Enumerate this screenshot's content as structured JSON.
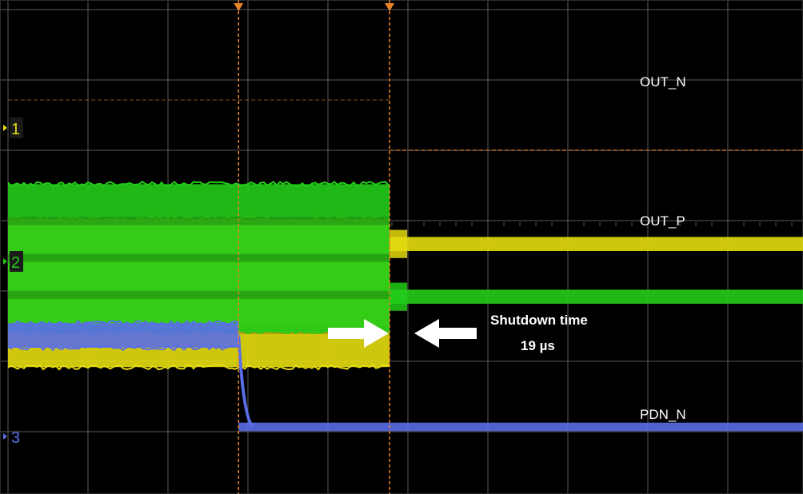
{
  "chart_data": {
    "type": "line",
    "description_type": "oscilloscope",
    "time_unit": "µs",
    "time_per_div": 10,
    "time_range_us": [
      -48,
      52
    ],
    "grid": true,
    "background": "#000000",
    "channels": [
      {
        "id": "1",
        "name": "OUT_N",
        "color": "#e6dc10",
        "marker": "1",
        "before_shutdown": {
          "level_div": 2.65,
          "envelope_div": 2.1
        },
        "after_shutdown": {
          "level_div": 3.35,
          "envelope_div": 0.2
        },
        "transition_us": 0
      },
      {
        "id": "2",
        "name": "OUT_P",
        "color": "#22cc18",
        "marker": "2",
        "before_shutdown": {
          "level_div": 3.15,
          "envelope_div": 2.1
        },
        "after_shutdown": {
          "level_div": 2.6,
          "envelope_div": 0.2
        },
        "transition_us": 0
      },
      {
        "id": "3",
        "name": "PDN_N",
        "color": "#5a6ee8",
        "marker": "3",
        "before_shutdown": {
          "level_div": 2.05,
          "envelope_div": 0.35
        },
        "after_shutdown": {
          "level_div": 0.75,
          "envelope_div": 0.12
        },
        "transition_us": -19
      }
    ],
    "cursors_us": [
      -19,
      0
    ],
    "annotations": [
      {
        "text_line1": "Shutdown time",
        "text_line2": "19 µs"
      }
    ]
  },
  "colors": {
    "grid": "#5a5a5a",
    "cursor": "#e8842a",
    "arrow": "#ffffff",
    "text": "#ffffff"
  }
}
